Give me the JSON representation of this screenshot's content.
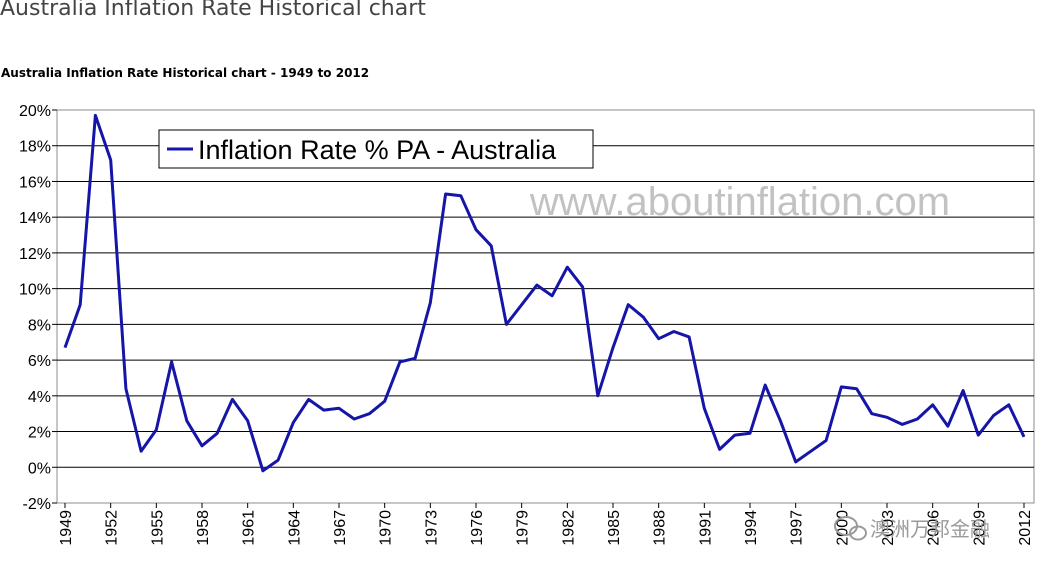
{
  "page": {
    "title": "Australia Inflation Rate Historical chart"
  },
  "chart_data": {
    "type": "line",
    "title": "Australia Inflation Rate Historical chart - 1949 to 2012",
    "xlabel": "",
    "ylabel": "",
    "ylim": [
      -2,
      20
    ],
    "yticks": [
      "-2%",
      "0%",
      "2%",
      "4%",
      "6%",
      "8%",
      "10%",
      "12%",
      "14%",
      "16%",
      "18%",
      "20%"
    ],
    "xlim": [
      1949,
      2012
    ],
    "xticks": [
      "1949",
      "1952",
      "1955",
      "1958",
      "1961",
      "1964",
      "1967",
      "1970",
      "1973",
      "1976",
      "1979",
      "1982",
      "1985",
      "1988",
      "1991",
      "1994",
      "1997",
      "2000",
      "2003",
      "2006",
      "2009",
      "2012"
    ],
    "grid": true,
    "legend": "top-left",
    "line_color": "#1515a8",
    "series": [
      {
        "name": "Inflation Rate % PA - Australia",
        "x": [
          1949,
          1950,
          1951,
          1952,
          1953,
          1954,
          1955,
          1956,
          1957,
          1958,
          1959,
          1960,
          1961,
          1962,
          1963,
          1964,
          1965,
          1966,
          1967,
          1968,
          1969,
          1970,
          1971,
          1972,
          1973,
          1974,
          1975,
          1976,
          1977,
          1978,
          1979,
          1980,
          1981,
          1982,
          1983,
          1984,
          1985,
          1986,
          1987,
          1988,
          1989,
          1990,
          1991,
          1992,
          1993,
          1994,
          1995,
          1996,
          1997,
          1998,
          1999,
          2000,
          2001,
          2002,
          2003,
          2004,
          2005,
          2006,
          2007,
          2008,
          2009,
          2010,
          2011,
          2012
        ],
        "values": [
          6.7,
          9.1,
          19.7,
          17.2,
          4.4,
          0.9,
          2.1,
          5.9,
          2.6,
          1.2,
          1.9,
          3.8,
          2.6,
          -0.2,
          0.4,
          2.5,
          3.8,
          3.2,
          3.3,
          2.7,
          3.0,
          3.7,
          5.9,
          6.1,
          9.2,
          15.3,
          15.2,
          13.3,
          12.4,
          8.0,
          9.1,
          10.2,
          9.6,
          11.2,
          10.1,
          4.0,
          6.7,
          9.1,
          8.4,
          7.2,
          7.6,
          7.3,
          3.3,
          1.0,
          1.8,
          1.9,
          4.6,
          2.6,
          0.3,
          0.9,
          1.5,
          4.5,
          4.4,
          3.0,
          2.8,
          2.4,
          2.7,
          3.5,
          2.3,
          4.3,
          1.8,
          2.9,
          3.5,
          1.7
        ]
      }
    ]
  },
  "watermarks": {
    "site": "www.aboutinflation.com",
    "brand": "澳洲万邦金融",
    "brand_icon": "wechat-bubble-icon"
  }
}
